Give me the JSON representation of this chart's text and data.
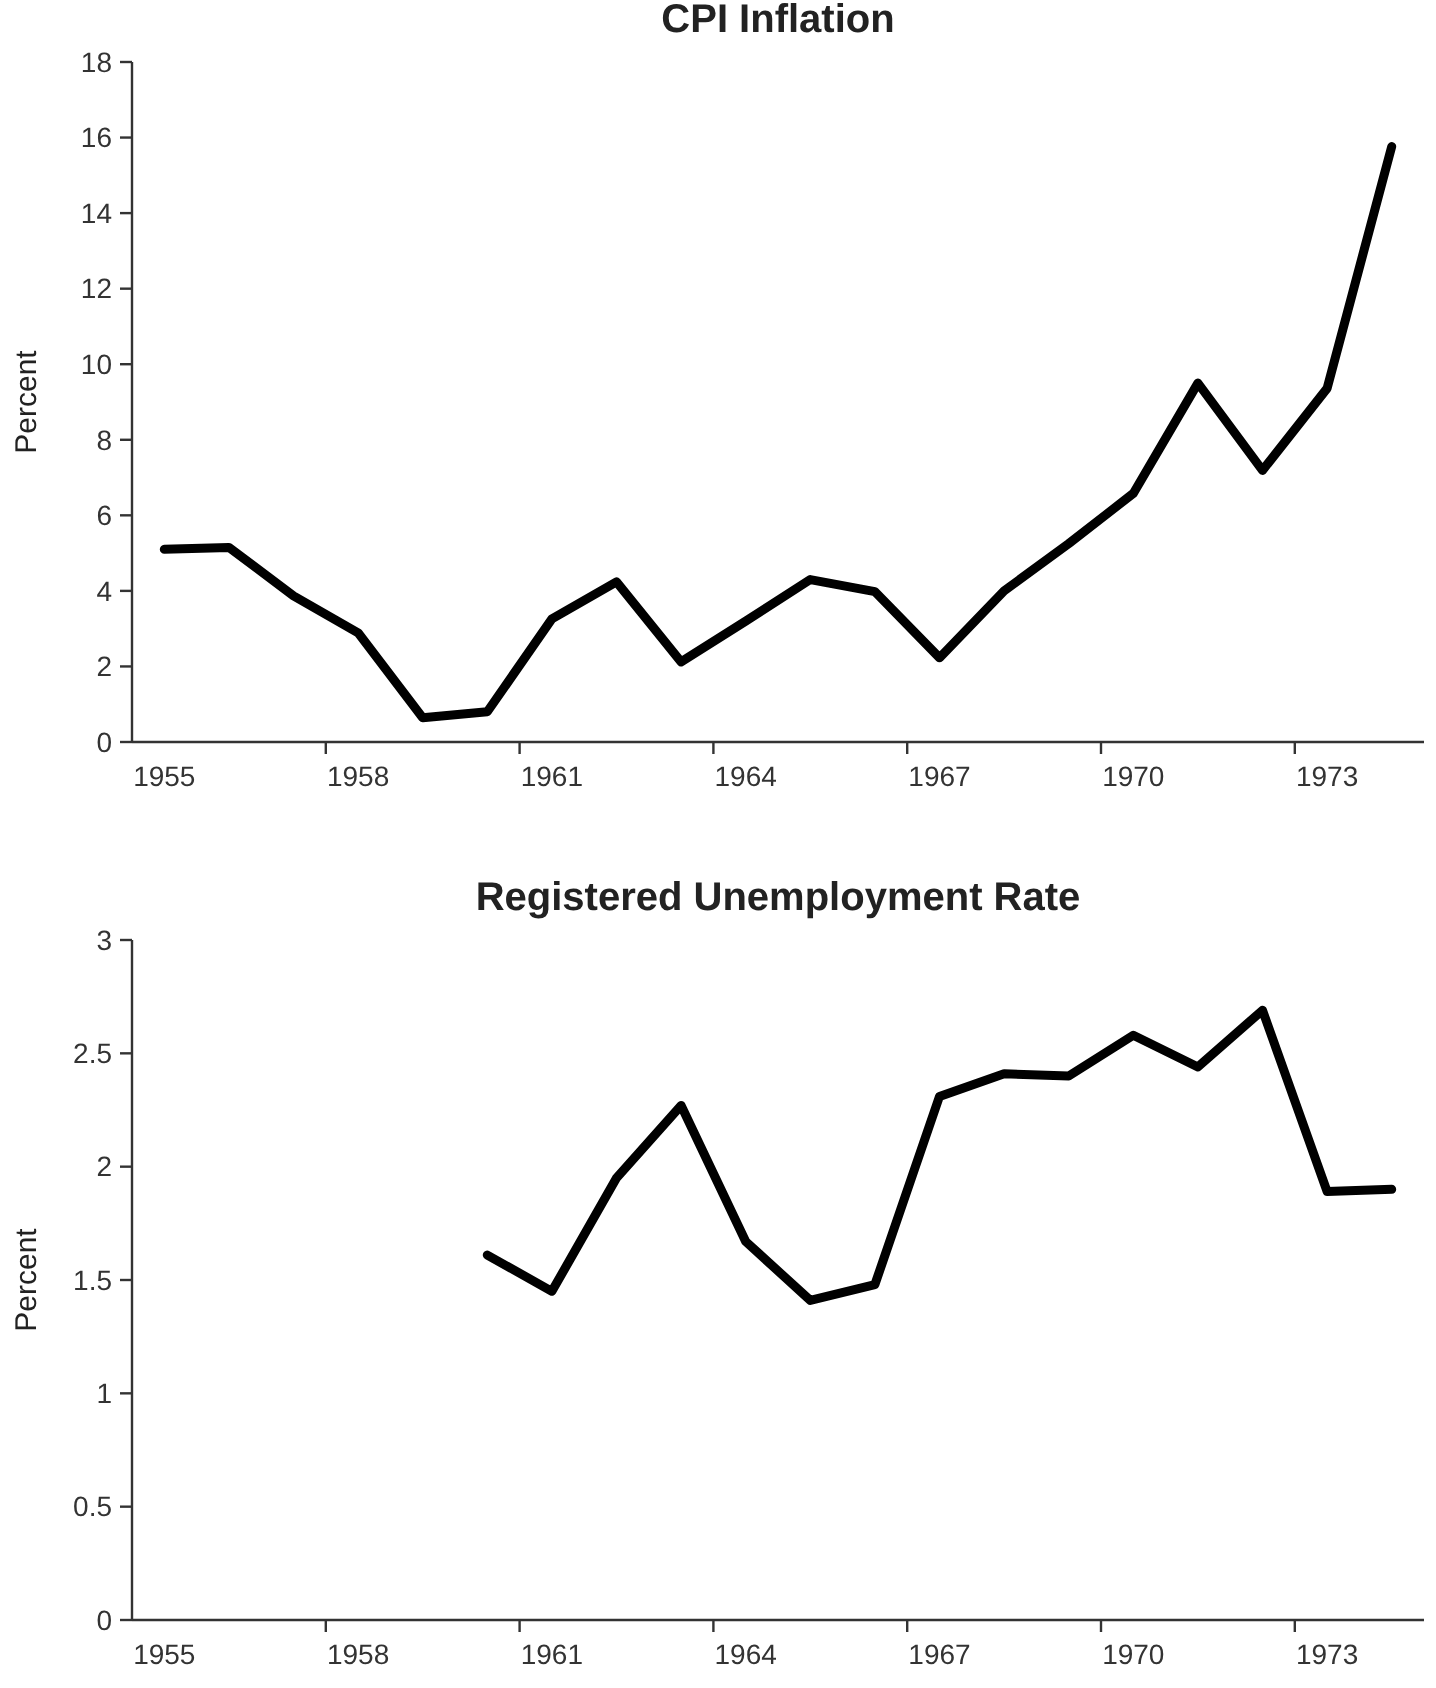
{
  "chart_data": [
    {
      "type": "line",
      "title": "CPI Inflation",
      "ylabel": "Percent",
      "categories": [
        "1955",
        null,
        null,
        "1958",
        null,
        null,
        "1961",
        null,
        null,
        "1964",
        null,
        null,
        "1967",
        null,
        null,
        "1970",
        null,
        null,
        "1973",
        null
      ],
      "series": [
        {
          "color": "#000000",
          "values": [
            5.1,
            5.15,
            3.87,
            2.89,
            0.64,
            0.8,
            3.26,
            4.24,
            2.12,
            3.2,
            4.3,
            3.98,
            2.23,
            4.0,
            5.25,
            6.58,
            9.5,
            7.19,
            9.36,
            15.76
          ]
        }
      ],
      "ylim": [
        0,
        18
      ],
      "yticks": [
        0,
        2,
        4,
        6,
        8,
        10,
        12,
        14,
        16,
        18
      ],
      "marker": "none",
      "line_style": "solid"
    },
    {
      "type": "line",
      "title": "Registered Unemployment Rate",
      "ylabel": "Percent",
      "categories": [
        "1955",
        null,
        null,
        "1958",
        null,
        null,
        "1961",
        null,
        null,
        "1964",
        null,
        null,
        "1967",
        null,
        null,
        "1970",
        null,
        null,
        "1973",
        null
      ],
      "series": [
        {
          "color": "#000000",
          "values": [
            null,
            null,
            null,
            null,
            null,
            1.61,
            1.45,
            1.95,
            2.27,
            1.67,
            1.41,
            1.48,
            2.31,
            2.41,
            2.4,
            2.58,
            2.44,
            2.69,
            1.89,
            1.9
          ]
        }
      ],
      "ylim": [
        0,
        3
      ],
      "yticks": [
        0,
        0.5,
        1,
        1.5,
        2,
        2.5,
        3
      ],
      "marker": "none",
      "line_style": "solid"
    }
  ]
}
